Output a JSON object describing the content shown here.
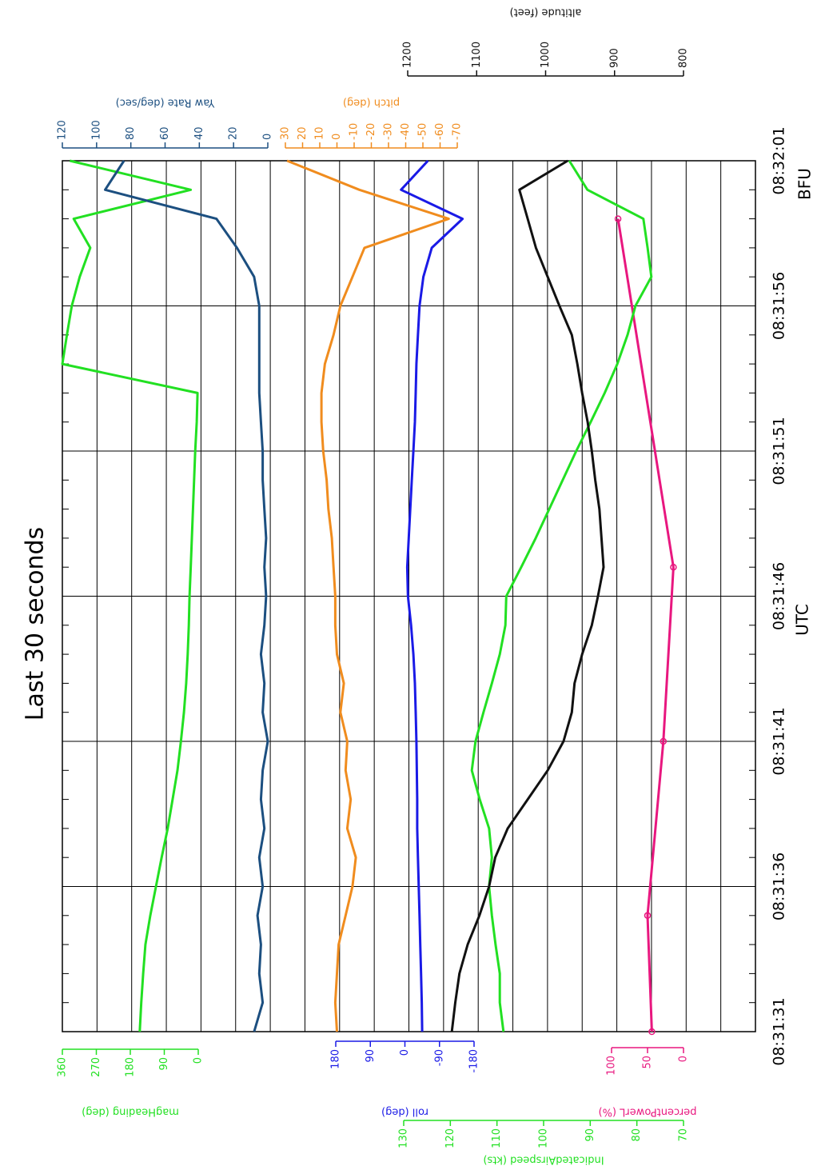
{
  "chart_data": {
    "type": "line",
    "title": "Last 30 seconds",
    "xlabel": "UTC",
    "annotation": "BFU",
    "grid": true,
    "x": [
      "08:31:31",
      "08:31:32",
      "08:31:33",
      "08:31:34",
      "08:31:35",
      "08:31:36",
      "08:31:37",
      "08:31:38",
      "08:31:39",
      "08:31:40",
      "08:31:41",
      "08:31:42",
      "08:31:43",
      "08:31:44",
      "08:31:45",
      "08:31:46",
      "08:31:47",
      "08:31:48",
      "08:31:49",
      "08:31:50",
      "08:31:51",
      "08:31:52",
      "08:31:53",
      "08:31:54",
      "08:31:55",
      "08:31:56",
      "08:31:57",
      "08:31:58",
      "08:31:59",
      "08:32:00",
      "08:32:01"
    ],
    "xlim": [
      "08:31:31",
      "08:32:01"
    ],
    "xticks": [
      "08:31:31",
      "08:31:36",
      "08:31:41",
      "08:31:46",
      "08:31:51",
      "08:31:56",
      "08:32:01"
    ],
    "series": [
      {
        "name": "magHeading (deg)",
        "color": "#22e022",
        "ylim": [
          0,
          360
        ],
        "yticks": [
          0,
          90,
          180,
          270,
          360
        ],
        "values": [
          155,
          151,
          146,
          140,
          127,
          112,
          97,
          81,
          68,
          55,
          46,
          38,
          32,
          28,
          25,
          23,
          20,
          17,
          14,
          11,
          8,
          4,
          2,
          360,
          348,
          335,
          314,
          286,
          330,
          20,
          340
        ]
      },
      {
        "name": "roll (deg)",
        "color": "#1a1ae6",
        "ylim": [
          -180,
          180
        ],
        "yticks": [
          -180,
          -90,
          0,
          90,
          180
        ],
        "values": [
          -45,
          -44,
          -42,
          -40,
          -38,
          -36,
          -34,
          -32,
          -32,
          -31,
          -30,
          -28,
          -26,
          -22,
          -16,
          -8,
          -6,
          -10,
          -14,
          -18,
          -22,
          -26,
          -28,
          -30,
          -34,
          -38,
          -48,
          -70,
          -150,
          10,
          -60
        ]
      },
      {
        "name": "percentPowerL (%)",
        "color": "#e8177f",
        "ylim": [
          0,
          100
        ],
        "yticks": [
          0,
          50,
          100
        ],
        "markers": true,
        "x": [
          "08:31:31",
          "08:31:35",
          "08:31:41",
          "08:31:47",
          "08:31:59"
        ],
        "values": [
          44,
          50,
          28,
          14,
          91
        ]
      },
      {
        "name": "IndicatedAirspeed (kts)",
        "color": "#22e022",
        "ylim": [
          70,
          130
        ],
        "yticks": [
          70,
          80,
          90,
          100,
          110,
          120,
          130
        ],
        "values": [
          108.6,
          109.4,
          109.4,
          110.3,
          111.1,
          111.7,
          111.1,
          111.7,
          113.7,
          115.4,
          114.6,
          112.9,
          111.1,
          109.4,
          108.2,
          108,
          104.8,
          101.7,
          98.8,
          95.9,
          93,
          89.9,
          86.9,
          84.2,
          82,
          80.3,
          76.9,
          77.7,
          78.6,
          90.6,
          94.5
        ]
      },
      {
        "name": "Yaw Rate (deg/sec)",
        "color": "#1c4f80",
        "ylim": [
          0,
          120
        ],
        "yticks": [
          0,
          20,
          40,
          60,
          80,
          100,
          120
        ],
        "values": [
          8,
          3,
          5,
          4,
          6,
          3,
          5,
          2,
          4,
          3,
          0,
          3,
          2,
          4,
          2,
          1,
          2,
          1,
          2,
          3,
          3,
          4,
          5,
          5,
          5,
          5,
          8,
          18,
          30,
          95,
          84
        ]
      },
      {
        "name": "pitch (deg)",
        "color": "#f08c1e",
        "ylim": [
          -70,
          30
        ],
        "yticks": [
          -70,
          -60,
          -50,
          -40,
          -30,
          -20,
          -10,
          0,
          10,
          20,
          30
        ],
        "values": [
          0,
          1,
          0,
          -1,
          -5,
          -9,
          -11,
          -6,
          -8,
          -5,
          -6,
          -2,
          -4,
          0,
          1,
          1,
          2,
          3,
          5,
          6,
          8,
          9,
          9,
          7,
          2,
          -2,
          -9,
          -16,
          -65,
          -13,
          29
        ]
      },
      {
        "name": "altitude (feet)",
        "color": "#111111",
        "ylim": [
          800,
          1200
        ],
        "yticks": [
          800,
          900,
          1000,
          1100,
          1200
        ],
        "values": [
          1136,
          1131,
          1125,
          1113,
          1096,
          1082,
          1073,
          1055,
          1026,
          997,
          974,
          962,
          958,
          947,
          933,
          924,
          916,
          919,
          922,
          928,
          933,
          939,
          947,
          954,
          962,
          980,
          997,
          1014,
          1026,
          1038,
          968
        ]
      }
    ]
  }
}
